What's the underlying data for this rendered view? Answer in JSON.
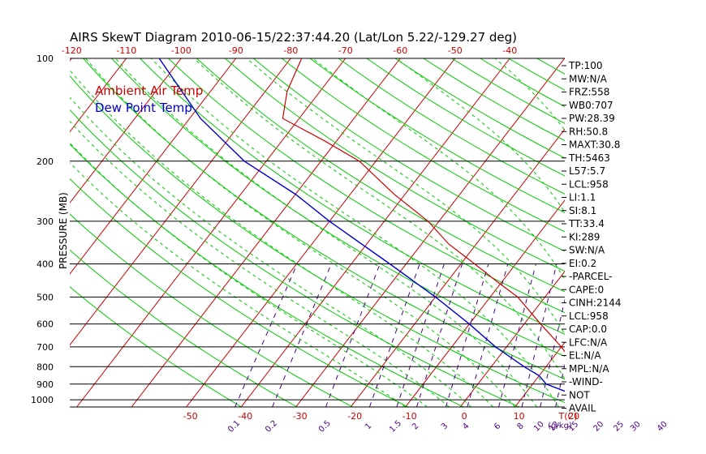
{
  "chart_data": {
    "type": "line",
    "title": "AIRS SkewT Diagram 2010-06-15/22:37:44.20 (Lat/Lon 5.22/-129.27 deg)",
    "ylabel": "PRESSURE (MB)",
    "y_scale": "log",
    "y_reversed": true,
    "ylim": [
      1050,
      100
    ],
    "pressure_ticks": [
      100,
      200,
      300,
      400,
      500,
      600,
      700,
      800,
      900,
      1000
    ],
    "bottom_temp_ticks": [
      -50,
      -40,
      -30,
      -20,
      -10,
      0,
      10,
      20
    ],
    "bottom_unit_label": "T(C)",
    "top_temp_ticks": [
      -120,
      -110,
      -100,
      -90,
      -80,
      -70,
      -60,
      -50,
      -40
    ],
    "mixing_ratio_ticks": [
      "0.1",
      "0.2",
      "0.5",
      "1",
      "1.5",
      "2",
      "3",
      "4",
      "6",
      "8",
      "10",
      "12",
      "15",
      "20",
      "25",
      "30",
      "40"
    ],
    "mixing_ratio_unit": "(g/kg)",
    "grid": true,
    "colors": {
      "air_temp": "#cc0000",
      "dew_point": "#0000cc",
      "isotherms": "#cc0000",
      "dry_adiabats": "#00cc00",
      "moist_adiabats": "#00cc00",
      "mixing_ratio": "#4b0082",
      "isobars": "#000000"
    },
    "legend": {
      "position": "top-left",
      "entries": [
        {
          "name": "Ambient Air Temp",
          "color": "#cc0000"
        },
        {
          "name": "Dew Point Temp",
          "color": "#0000cc"
        }
      ]
    },
    "series": [
      {
        "name": "Ambient Air Temp",
        "color": "#cc0000",
        "points": [
          {
            "p": 1013,
            "t": 26.0
          },
          {
            "p": 990,
            "t": 24.5
          },
          {
            "p": 950,
            "t": 22.0
          },
          {
            "p": 900,
            "t": 20.5
          },
          {
            "p": 850,
            "t": 18.0
          },
          {
            "p": 800,
            "t": 15.5
          },
          {
            "p": 700,
            "t": 10.0
          },
          {
            "p": 600,
            "t": 3.0
          },
          {
            "p": 500,
            "t": -5.0
          },
          {
            "p": 450,
            "t": -11.0
          },
          {
            "p": 400,
            "t": -17.5
          },
          {
            "p": 350,
            "t": -25.0
          },
          {
            "p": 300,
            "t": -32.0
          },
          {
            "p": 250,
            "t": -42.0
          },
          {
            "p": 200,
            "t": -53.0
          },
          {
            "p": 175,
            "t": -62.0
          },
          {
            "p": 150,
            "t": -73.0
          },
          {
            "p": 125,
            "t": -76.0
          },
          {
            "p": 100,
            "t": -78.0
          }
        ]
      },
      {
        "name": "Dew Point Temp",
        "color": "#0000cc",
        "points": [
          {
            "p": 1013,
            "t": 21.0
          },
          {
            "p": 990,
            "t": 20.0
          },
          {
            "p": 950,
            "t": 17.5
          },
          {
            "p": 900,
            "t": 12.5
          },
          {
            "p": 850,
            "t": 10.0
          },
          {
            "p": 800,
            "t": 6.0
          },
          {
            "p": 700,
            "t": -2.0
          },
          {
            "p": 600,
            "t": -10.0
          },
          {
            "p": 500,
            "t": -20.0
          },
          {
            "p": 400,
            "t": -33.0
          },
          {
            "p": 300,
            "t": -50.0
          },
          {
            "p": 250,
            "t": -60.0
          },
          {
            "p": 200,
            "t": -74.0
          },
          {
            "p": 150,
            "t": -88.0
          },
          {
            "p": 100,
            "t": -104.0
          }
        ]
      }
    ],
    "stats": [
      "TP:100",
      "MW:N/A",
      "FRZ:558",
      "WB0:707",
      "PW:28.39",
      "RH:50.8",
      "MAXT:30.8",
      "TH:5463",
      "L57:5.7",
      "LCL:958",
      "LI:1.1",
      "SI:8.1",
      "TT:33.4",
      "KI:289",
      "SW:N/A",
      "EI:0.2",
      "-PARCEL-",
      "CAPE:0",
      "CINH:2144",
      "LCL:958",
      "CAP:0.0",
      "LFC:N/A",
      "EL:N/A",
      "MPL:N/A",
      "-WIND-",
      "NOT",
      "AVAIL"
    ]
  }
}
